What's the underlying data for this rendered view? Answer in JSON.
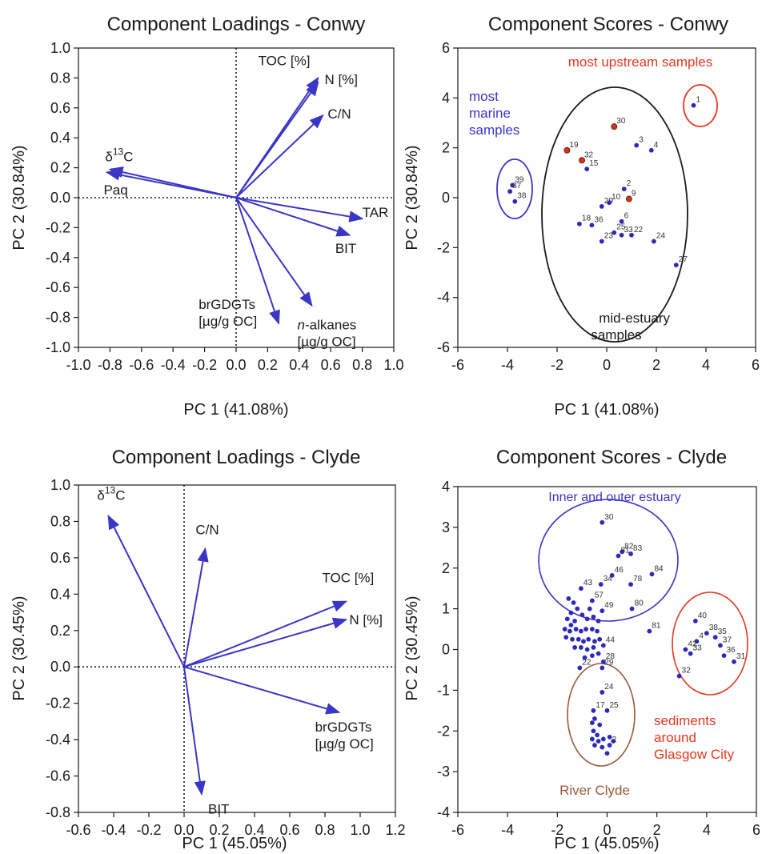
{
  "colors": {
    "arrow": "#3a36c6",
    "point": "#2e2ab8",
    "red_point": "#d2321e",
    "red": "#e53820",
    "black": "#1a1a1a",
    "blue_label": "#3c33c4",
    "brown": "#9a5a3c"
  },
  "chart_data": [
    {
      "type": "scatter",
      "subtype": "loadings-biplot",
      "title": "Component Loadings - Conwy",
      "xlabel": "PC 1 (41.08%)",
      "ylabel": "PC 2 (30.84%)",
      "xlim": [
        -1.0,
        1.0
      ],
      "ylim": [
        -1.0,
        1.0
      ],
      "xticks": [
        -1.0,
        -0.8,
        -0.6,
        -0.4,
        -0.2,
        0.0,
        0.2,
        0.4,
        0.6,
        0.8,
        1.0
      ],
      "yticks": [
        -1.0,
        -0.8,
        -0.6,
        -0.4,
        -0.2,
        0.0,
        0.2,
        0.4,
        0.6,
        0.8,
        1.0
      ],
      "grid": false,
      "vectors": [
        {
          "label": "TOC [%]",
          "x": 0.52,
          "y": 0.8
        },
        {
          "label": "N [%]",
          "x": 0.52,
          "y": 0.77
        },
        {
          "label": "C/N",
          "x": 0.55,
          "y": 0.55
        },
        {
          "label": "δ13C",
          "x": -0.8,
          "y": 0.19
        },
        {
          "label": "Paq",
          "x": -0.82,
          "y": 0.17
        },
        {
          "label": "TAR",
          "x": 0.8,
          "y": -0.14
        },
        {
          "label": "BIT",
          "x": 0.72,
          "y": -0.25
        },
        {
          "label": "brGDGTs [µg/g OC]",
          "x": 0.27,
          "y": -0.84
        },
        {
          "label": "n-alkanes [µg/g OC]",
          "x": 0.48,
          "y": -0.72
        }
      ]
    },
    {
      "type": "scatter",
      "title": "Component Scores - Conwy",
      "xlabel": "PC 1 (41.08%)",
      "ylabel": "PC 2 (30.84%)",
      "xlim": [
        -6,
        6
      ],
      "ylim": [
        -6,
        6
      ],
      "xticks": [
        -6,
        -4,
        -2,
        0,
        2,
        4,
        6
      ],
      "yticks": [
        -6,
        -4,
        -2,
        0,
        2,
        4,
        6
      ],
      "grid": false,
      "points": [
        {
          "id": "1",
          "x": 3.5,
          "y": 3.7,
          "red": false
        },
        {
          "id": "30",
          "x": 0.3,
          "y": 2.85,
          "red": true
        },
        {
          "id": "3",
          "x": 1.2,
          "y": 2.1,
          "red": false
        },
        {
          "id": "4",
          "x": 1.8,
          "y": 1.9,
          "red": false
        },
        {
          "id": "19",
          "x": -1.6,
          "y": 1.9,
          "red": true
        },
        {
          "id": "32",
          "x": -1.0,
          "y": 1.5,
          "red": true
        },
        {
          "id": "15",
          "x": -0.8,
          "y": 1.15,
          "red": false
        },
        {
          "id": "2",
          "x": 0.7,
          "y": 0.35,
          "red": false
        },
        {
          "id": "9",
          "x": 0.9,
          "y": -0.05,
          "red": true
        },
        {
          "id": "29",
          "x": -0.2,
          "y": -0.35,
          "red": false
        },
        {
          "id": "10",
          "x": 0.1,
          "y": -0.2,
          "red": false
        },
        {
          "id": "18",
          "x": -1.1,
          "y": -1.05,
          "red": false
        },
        {
          "id": "36",
          "x": -0.6,
          "y": -1.1,
          "red": false
        },
        {
          "id": "6",
          "x": 0.6,
          "y": -0.95,
          "red": false
        },
        {
          "id": "25",
          "x": 0.3,
          "y": -1.4,
          "red": false
        },
        {
          "id": "33",
          "x": 0.6,
          "y": -1.5,
          "red": false
        },
        {
          "id": "22",
          "x": 1.0,
          "y": -1.5,
          "red": false
        },
        {
          "id": "23",
          "x": -0.2,
          "y": -1.75,
          "red": false
        },
        {
          "id": "24",
          "x": 1.9,
          "y": -1.75,
          "red": false
        },
        {
          "id": "27",
          "x": 2.8,
          "y": -2.7,
          "red": false
        },
        {
          "id": "39",
          "x": -3.8,
          "y": 0.5,
          "red": false
        },
        {
          "id": "37",
          "x": -3.9,
          "y": 0.25,
          "red": false
        },
        {
          "id": "38",
          "x": -3.7,
          "y": -0.15,
          "red": false
        }
      ],
      "annotations": [
        {
          "text": "most upstream samples",
          "color": "red"
        },
        {
          "text": "most marine samples",
          "lines": [
            "most",
            "marine",
            "samples"
          ],
          "color": "blue"
        },
        {
          "text": "mid-estuary samples",
          "lines": [
            "mid-estuary",
            "samples"
          ],
          "color": "black"
        }
      ]
    },
    {
      "type": "scatter",
      "subtype": "loadings-biplot",
      "title": "Component Loadings - Clyde",
      "xlabel": "PC 1 (45.05%)",
      "ylabel": "PC 2 (30.45%)",
      "xlim": [
        -0.6,
        1.2
      ],
      "ylim": [
        -0.8,
        1.0
      ],
      "xticks": [
        -0.6,
        -0.4,
        -0.2,
        0.0,
        0.2,
        0.4,
        0.6,
        0.8,
        1.0,
        1.2
      ],
      "yticks": [
        -0.8,
        -0.6,
        -0.4,
        -0.2,
        0.0,
        0.2,
        0.4,
        0.6,
        0.8,
        1.0
      ],
      "grid": false,
      "vectors": [
        {
          "label": "δ13C",
          "x": -0.43,
          "y": 0.83
        },
        {
          "label": "C/N",
          "x": 0.12,
          "y": 0.65
        },
        {
          "label": "TOC [%]",
          "x": 0.92,
          "y": 0.36
        },
        {
          "label": "N [%]",
          "x": 0.92,
          "y": 0.26
        },
        {
          "label": "brGDGTs [µg/g OC]",
          "x": 0.88,
          "y": -0.25
        },
        {
          "label": "BIT",
          "x": 0.1,
          "y": -0.7
        }
      ]
    },
    {
      "type": "scatter",
      "title": "Component Scores - Clyde",
      "xlabel": "PC 1 (45.05%)",
      "ylabel": "PC 2 (30.45%)",
      "xlim": [
        -6,
        6
      ],
      "ylim": [
        -4,
        4
      ],
      "xticks": [
        -6,
        -4,
        -2,
        0,
        2,
        4,
        6
      ],
      "yticks": [
        -4,
        -3,
        -2,
        -1,
        0,
        1,
        2,
        3,
        4
      ],
      "grid": false,
      "points": [
        {
          "id": "30",
          "x": -0.2,
          "y": 3.12
        },
        {
          "id": "82",
          "x": 0.6,
          "y": 2.4
        },
        {
          "id": "83",
          "x": 0.95,
          "y": 2.35
        },
        {
          "id": "81",
          "x": 0.45,
          "y": 2.3
        },
        {
          "id": "84",
          "x": 1.8,
          "y": 1.85
        },
        {
          "id": "46",
          "x": 0.2,
          "y": 1.82
        },
        {
          "id": "34",
          "x": -0.25,
          "y": 1.6
        },
        {
          "id": "78",
          "x": 0.95,
          "y": 1.6
        },
        {
          "id": "43",
          "x": -1.05,
          "y": 1.5
        },
        {
          "id": "57",
          "x": -0.6,
          "y": 1.2
        },
        {
          "id": "49",
          "x": -0.2,
          "y": 0.95
        },
        {
          "id": "80",
          "x": 1.0,
          "y": 1.0
        },
        {
          "id": "81",
          "x": 1.7,
          "y": 0.45
        },
        {
          "id": "44",
          "x": -0.15,
          "y": 0.1
        },
        {
          "id": "",
          "x": -1.55,
          "y": 1.25
        },
        {
          "id": "",
          "x": -1.35,
          "y": 1.15
        },
        {
          "id": "",
          "x": -1.2,
          "y": 1.0
        },
        {
          "id": "",
          "x": -1.45,
          "y": 0.9
        },
        {
          "id": "",
          "x": -1.6,
          "y": 0.75
        },
        {
          "id": "",
          "x": -1.3,
          "y": 0.7
        },
        {
          "id": "",
          "x": -1.0,
          "y": 0.85
        },
        {
          "id": "",
          "x": -0.8,
          "y": 0.75
        },
        {
          "id": "",
          "x": -0.55,
          "y": 0.8
        },
        {
          "id": "",
          "x": -1.7,
          "y": 0.5
        },
        {
          "id": "",
          "x": -1.5,
          "y": 0.45
        },
        {
          "id": "",
          "x": -1.25,
          "y": 0.5
        },
        {
          "id": "",
          "x": -1.05,
          "y": 0.45
        },
        {
          "id": "",
          "x": -0.85,
          "y": 0.5
        },
        {
          "id": "",
          "x": -0.6,
          "y": 0.5
        },
        {
          "id": "",
          "x": -0.4,
          "y": 0.45
        },
        {
          "id": "",
          "x": -1.65,
          "y": 0.3
        },
        {
          "id": "",
          "x": -1.4,
          "y": 0.25
        },
        {
          "id": "",
          "x": -1.15,
          "y": 0.25
        },
        {
          "id": "",
          "x": -0.95,
          "y": 0.2
        },
        {
          "id": "",
          "x": -0.75,
          "y": 0.25
        },
        {
          "id": "",
          "x": -0.5,
          "y": 0.2
        },
        {
          "id": "",
          "x": -0.3,
          "y": 0.25
        },
        {
          "id": "",
          "x": -1.3,
          "y": 0.05
        },
        {
          "id": "",
          "x": -1.05,
          "y": 0.05
        },
        {
          "id": "",
          "x": -0.8,
          "y": 0.0
        },
        {
          "id": "",
          "x": -0.55,
          "y": 0.05
        },
        {
          "id": "",
          "x": -0.9,
          "y": -0.2
        },
        {
          "id": "",
          "x": -0.6,
          "y": -0.15
        },
        {
          "id": "",
          "x": -0.35,
          "y": -0.1
        },
        {
          "id": "",
          "x": -1.45,
          "y": 0.6
        },
        {
          "id": "",
          "x": -0.7,
          "y": 1.0
        },
        {
          "id": "",
          "x": -0.35,
          "y": 0.7
        },
        {
          "id": "28",
          "x": -0.15,
          "y": -0.3
        },
        {
          "id": "22",
          "x": -1.1,
          "y": -0.45
        },
        {
          "id": "29",
          "x": -0.2,
          "y": -0.45
        },
        {
          "id": "24",
          "x": -0.2,
          "y": -1.05
        },
        {
          "id": "25",
          "x": 0.0,
          "y": -1.5
        },
        {
          "id": "17",
          "x": -0.55,
          "y": -1.5
        },
        {
          "id": "",
          "x": -0.5,
          "y": -1.7
        },
        {
          "id": "",
          "x": -0.6,
          "y": -1.8
        },
        {
          "id": "",
          "x": -0.3,
          "y": -1.85
        },
        {
          "id": "",
          "x": -0.55,
          "y": -2.0
        },
        {
          "id": "",
          "x": -0.4,
          "y": -2.1
        },
        {
          "id": "",
          "x": -0.6,
          "y": -2.2
        },
        {
          "id": "",
          "x": -0.35,
          "y": -2.25
        },
        {
          "id": "",
          "x": -0.15,
          "y": -2.2
        },
        {
          "id": "",
          "x": 0.1,
          "y": -2.15
        },
        {
          "id": "",
          "x": 0.25,
          "y": -2.25
        },
        {
          "id": "",
          "x": -0.5,
          "y": -2.35
        },
        {
          "id": "",
          "x": -0.2,
          "y": -2.4
        },
        {
          "id": "2",
          "x": 0.1,
          "y": -2.35
        },
        {
          "id": "",
          "x": 0.0,
          "y": -2.55
        },
        {
          "id": "40",
          "x": 3.55,
          "y": 0.7
        },
        {
          "id": "38",
          "x": 4.0,
          "y": 0.4
        },
        {
          "id": "35",
          "x": 4.35,
          "y": 0.3
        },
        {
          "id": "37",
          "x": 4.55,
          "y": 0.1
        },
        {
          "id": "4",
          "x": 3.6,
          "y": 0.2
        },
        {
          "id": "42",
          "x": 3.15,
          "y": 0.0
        },
        {
          "id": "33",
          "x": 3.35,
          "y": -0.1
        },
        {
          "id": "36",
          "x": 4.7,
          "y": -0.15
        },
        {
          "id": "31",
          "x": 5.1,
          "y": -0.3
        },
        {
          "id": "32",
          "x": 2.9,
          "y": -0.65
        }
      ],
      "annotations": [
        {
          "text": "Inner and outer estuary",
          "color": "blue"
        },
        {
          "text": "River Clyde",
          "color": "brown"
        },
        {
          "text": "sediments around Glasgow City",
          "lines": [
            "sediments",
            "around",
            "Glasgow City"
          ],
          "color": "red"
        }
      ]
    }
  ]
}
